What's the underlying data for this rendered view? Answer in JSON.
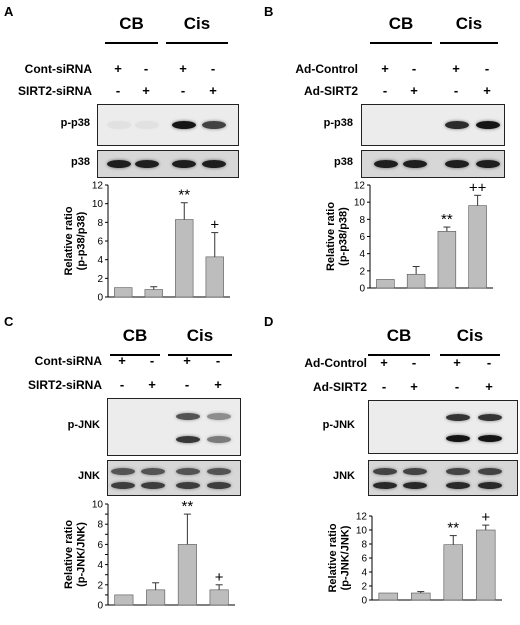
{
  "panels": [
    {
      "letter": "A",
      "groups": [
        "CB",
        "Cis"
      ],
      "treatments": [
        {
          "label": "Cont-siRNA",
          "signs": [
            "+",
            "-",
            "+",
            "-"
          ]
        },
        {
          "label": "SIRT2-siRNA",
          "signs": [
            "-",
            "+",
            "-",
            "+"
          ]
        }
      ],
      "blots": [
        {
          "label": "p-p38",
          "intensities": [
            0.05,
            0.05,
            0.95,
            0.75
          ],
          "double": false
        },
        {
          "label": "p38",
          "intensities": [
            0.9,
            0.9,
            0.9,
            0.9
          ],
          "double": false
        }
      ],
      "chart_data": {
        "type": "bar",
        "categories": [
          "1",
          "2",
          "3",
          "4"
        ],
        "values": [
          1.0,
          0.8,
          8.3,
          4.3
        ],
        "errors": [
          0,
          0.3,
          1.8,
          2.6
        ],
        "annotations": [
          "",
          "",
          "**",
          "+"
        ],
        "ylabel": "Relative ratio\n(p-p38/p38)",
        "ylim": [
          0,
          12
        ],
        "yticks": [
          0,
          2,
          4,
          6,
          8,
          10,
          12
        ],
        "bar_color": "#bdbdbd"
      }
    },
    {
      "letter": "B",
      "groups": [
        "CB",
        "Cis"
      ],
      "treatments": [
        {
          "label": "Ad-Control",
          "signs": [
            "+",
            "-",
            "+",
            "-"
          ]
        },
        {
          "label": "Ad-SIRT2",
          "signs": [
            "-",
            "+",
            "-",
            "+"
          ]
        }
      ],
      "blots": [
        {
          "label": "p-p38",
          "intensities": [
            0.0,
            0.0,
            0.85,
            0.95
          ],
          "double": false
        },
        {
          "label": "p38",
          "intensities": [
            0.9,
            0.9,
            0.9,
            0.9
          ],
          "double": false
        }
      ],
      "chart_data": {
        "type": "bar",
        "categories": [
          "1",
          "2",
          "3",
          "4"
        ],
        "values": [
          1.0,
          1.6,
          6.6,
          9.6
        ],
        "errors": [
          0,
          0.9,
          0.5,
          1.2
        ],
        "annotations": [
          "",
          "",
          "**",
          "++"
        ],
        "ylabel": "Relative ratio\n(p-p38/p38)",
        "ylim": [
          0,
          12
        ],
        "yticks": [
          0,
          2,
          4,
          6,
          8,
          10,
          12
        ],
        "bar_color": "#bdbdbd"
      }
    },
    {
      "letter": "C",
      "groups": [
        "CB",
        "Cis"
      ],
      "treatments": [
        {
          "label": "Cont-siRNA",
          "signs": [
            "+",
            "-",
            "+",
            "-"
          ]
        },
        {
          "label": "SIRT2-siRNA",
          "signs": [
            "-",
            "+",
            "-",
            "+"
          ]
        }
      ],
      "blots": [
        {
          "label": "p-JNK",
          "intensities": [
            0.0,
            0.0,
            0.8,
            0.5
          ],
          "double": true
        },
        {
          "label": "JNK",
          "intensities": [
            0.75,
            0.75,
            0.75,
            0.75
          ],
          "double": true
        }
      ],
      "chart_data": {
        "type": "bar",
        "categories": [
          "1",
          "2",
          "3",
          "4"
        ],
        "values": [
          1.0,
          1.5,
          6.0,
          1.5
        ],
        "errors": [
          0,
          0.7,
          3.0,
          0.5
        ],
        "annotations": [
          "",
          "",
          "**",
          "+"
        ],
        "ylabel": "Relative ratio\n(p-JNK/JNK)",
        "ylim": [
          0,
          10
        ],
        "yticks": [
          0,
          1,
          2,
          3,
          4,
          5,
          6,
          7,
          8,
          9,
          10
        ],
        "tick_labels": [
          "0",
          "",
          "2",
          "",
          "4",
          "",
          "6",
          "",
          "8",
          "",
          "10"
        ],
        "bar_color": "#bdbdbd"
      }
    },
    {
      "letter": "D",
      "groups": [
        "CB",
        "Cis"
      ],
      "treatments": [
        {
          "label": "Ad-Control",
          "signs": [
            "+",
            "-",
            "+",
            "-"
          ]
        },
        {
          "label": "Ad-SIRT2",
          "signs": [
            "-",
            "+",
            "-",
            "+"
          ]
        }
      ],
      "blots": [
        {
          "label": "p-JNK",
          "intensities": [
            0.0,
            0.0,
            0.95,
            0.95
          ],
          "double": true
        },
        {
          "label": "JNK",
          "intensities": [
            0.85,
            0.85,
            0.85,
            0.85
          ],
          "double": true
        }
      ],
      "chart_data": {
        "type": "bar",
        "categories": [
          "1",
          "2",
          "3",
          "4"
        ],
        "values": [
          1.0,
          1.0,
          7.9,
          10.0
        ],
        "errors": [
          0,
          0.2,
          1.3,
          0.7
        ],
        "annotations": [
          "",
          "",
          "**",
          "+"
        ],
        "ylabel": "Relative ratio\n(p-JNK/JNK)",
        "ylim": [
          0,
          12
        ],
        "yticks": [
          0,
          2,
          4,
          6,
          8,
          10,
          12
        ],
        "bar_color": "#bdbdbd"
      }
    }
  ]
}
